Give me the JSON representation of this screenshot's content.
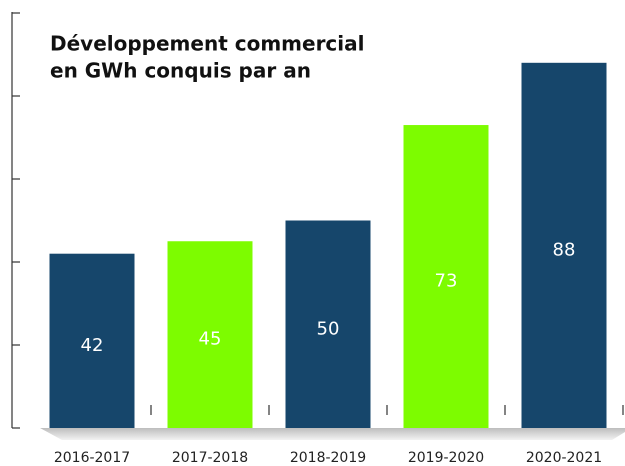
{
  "chart_data": {
    "type": "bar",
    "title": [
      "Développement commercial",
      "en GWh conquis par an"
    ],
    "categories": [
      "2016-2017",
      "2017-2018",
      "2018-2019",
      "2019-2020",
      "2020-2021"
    ],
    "values": [
      42,
      45,
      50,
      73,
      88
    ],
    "colors": [
      "#16466b",
      "#7dfc00",
      "#16466b",
      "#7dfc00",
      "#16466b"
    ],
    "ylim": [
      0,
      100
    ],
    "yticks": [
      0,
      20,
      40,
      60,
      80,
      100
    ],
    "grid": false
  }
}
